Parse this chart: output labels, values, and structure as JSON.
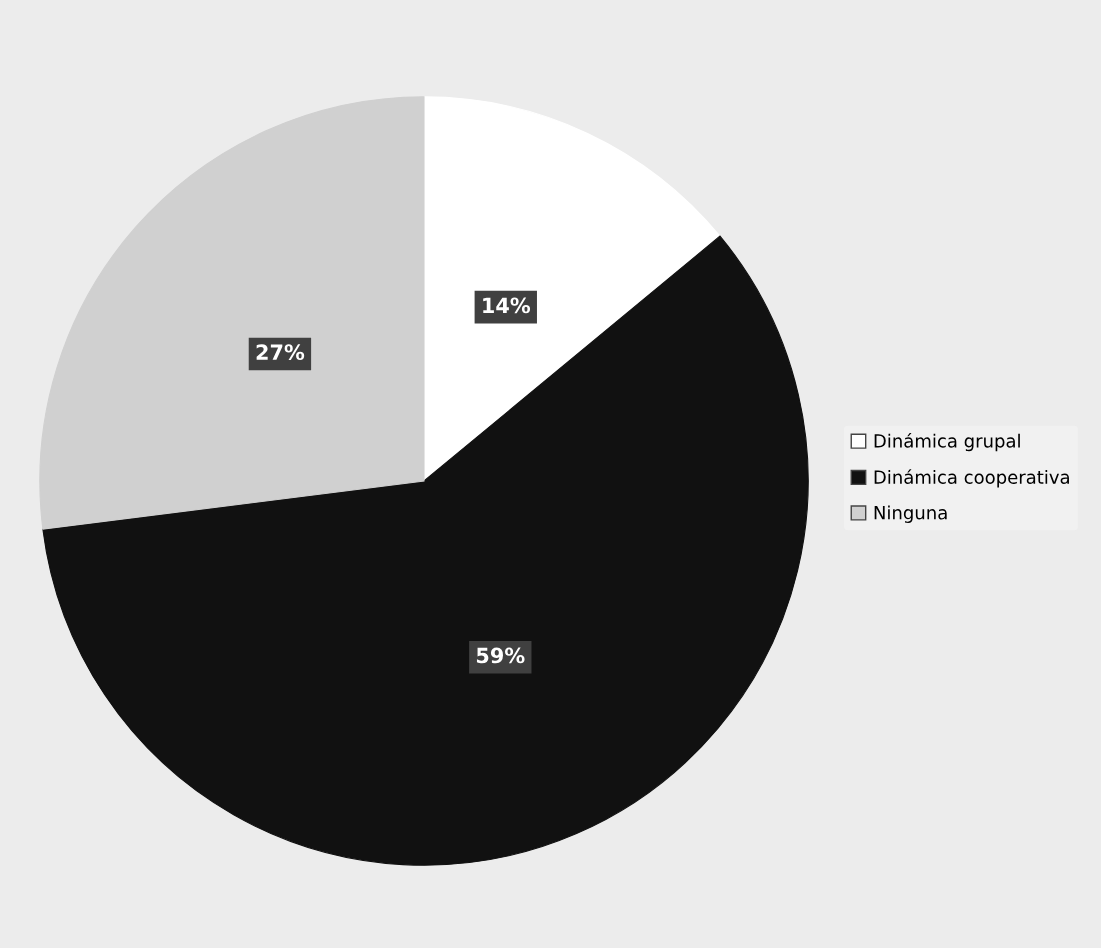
{
  "chart_data": {
    "type": "pie",
    "categories": [
      "Dinámica grupal",
      "Dinámica cooperativa",
      "Ninguna"
    ],
    "values": [
      14,
      59,
      27
    ],
    "colors": [
      "#ffffff",
      "#111111",
      "#d0d0d0"
    ],
    "value_labels": [
      "14%",
      "59%",
      "27%"
    ],
    "legend": "right"
  }
}
